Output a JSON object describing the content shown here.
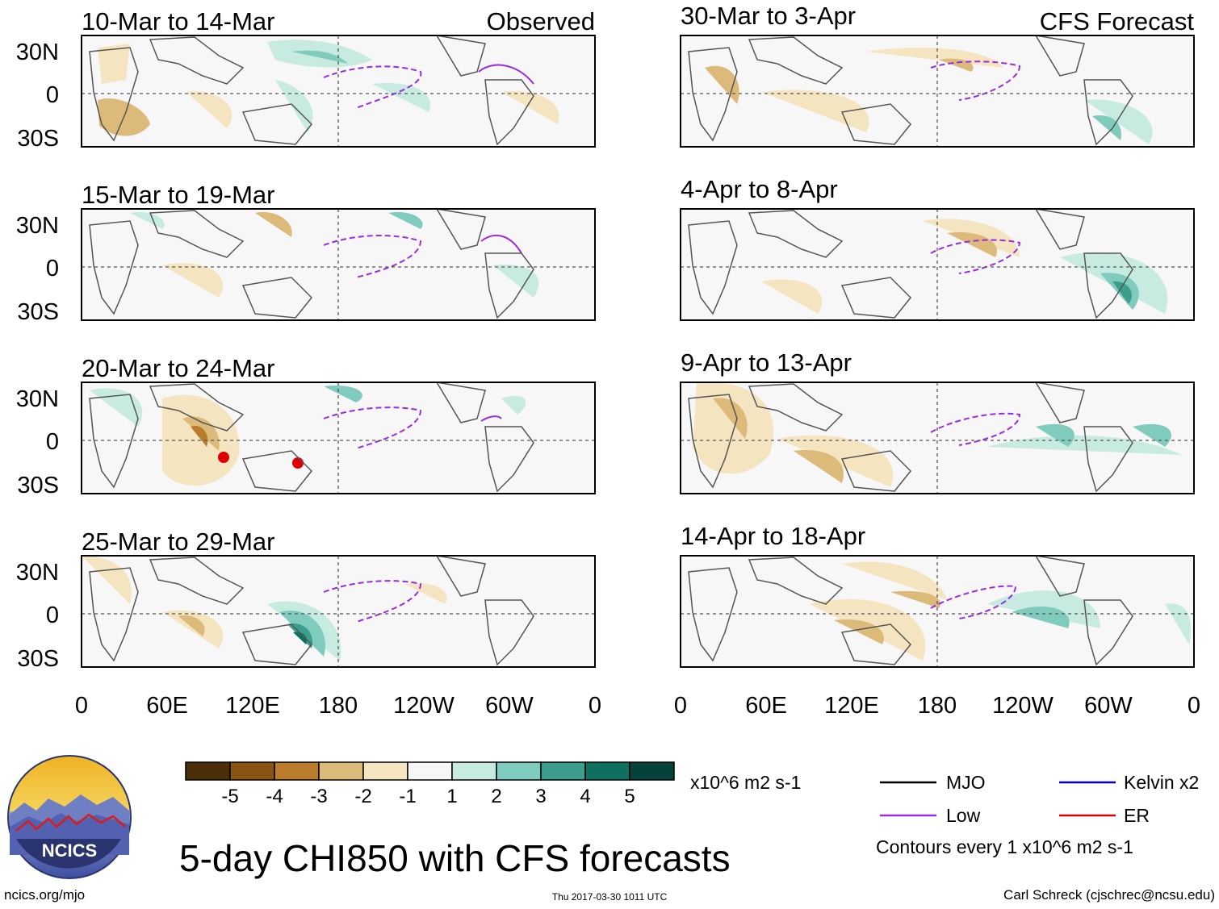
{
  "figure": {
    "title": "5-day CHI850 with CFS forecasts",
    "source_url": "ncics.org/mjo",
    "timestamp": "Thu 2017-03-30 1011 UTC",
    "author": "Carl Schreck (cjschrec@ncsu.edu)",
    "logo_text": "NCICS"
  },
  "columns": {
    "left_label": "Observed",
    "right_label": "CFS Forecast"
  },
  "panels_left": [
    {
      "period": "10-Mar to 14-Mar"
    },
    {
      "period": "15-Mar to 19-Mar"
    },
    {
      "period": "20-Mar to 24-Mar"
    },
    {
      "period": "25-Mar to 29-Mar"
    }
  ],
  "panels_right": [
    {
      "period": "30-Mar to 3-Apr"
    },
    {
      "period": "4-Apr to 8-Apr"
    },
    {
      "period": "9-Apr to 13-Apr"
    },
    {
      "period": "14-Apr to 18-Apr"
    }
  ],
  "axes": {
    "lat_ticks": [
      "30N",
      "0",
      "30S"
    ],
    "lon_ticks": [
      "0",
      "60E",
      "120E",
      "180",
      "120W",
      "60W",
      "0"
    ]
  },
  "colorbar": {
    "units": "x10^6 m2 s-1",
    "tick_labels": [
      "-5",
      "-4",
      "-3",
      "-2",
      "-1",
      "1",
      "2",
      "3",
      "4",
      "5"
    ],
    "colors": [
      "#4a2e08",
      "#8a5412",
      "#b97c2c",
      "#dcba7a",
      "#f5e4c0",
      "#f7f7f7",
      "#c8ebe1",
      "#7fcbbd",
      "#3e9e8e",
      "#10705f",
      "#05433a"
    ]
  },
  "legend": {
    "items": [
      {
        "label": "MJO",
        "color": "#000000"
      },
      {
        "label": "Kelvin x2",
        "color": "#0000dd"
      },
      {
        "label": "Low",
        "color": "#9a2be2"
      },
      {
        "label": "ER",
        "color": "#dd0000"
      }
    ],
    "note": "Contours every 1 x10^6 m2 s-1"
  }
}
